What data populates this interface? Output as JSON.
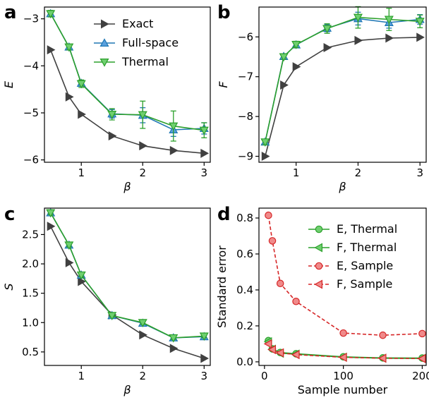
{
  "colors": {
    "exact": "#404040",
    "fullspace": "#1f77b4",
    "thermal": "#2ca02c",
    "sample": "#d62728",
    "thermal_marker_fill": "#6fcf6f",
    "sample_marker_fill": "#f08a8a",
    "full_marker_fill": "#5aa0dd"
  },
  "chart_data": [
    {
      "id": "a",
      "type": "line",
      "panel_label": "a",
      "xlabel": "β",
      "ylabel": "E",
      "xlim": [
        0.4,
        3.1
      ],
      "ylim": [
        -6.05,
        -2.75
      ],
      "xticks": [
        1,
        2,
        3
      ],
      "xtick_labels": [
        "1",
        "2",
        "3"
      ],
      "yticks": [
        -6,
        -5,
        -4,
        -3
      ],
      "ytick_labels": [
        "−6",
        "−5",
        "−4",
        "−3"
      ],
      "legend": "top-right",
      "series": [
        {
          "name": "Exact",
          "marker": "tri-right",
          "color_key": "exact",
          "x": [
            0.5,
            0.8,
            1.0,
            1.5,
            2.0,
            2.5,
            3.0
          ],
          "y": [
            -3.66,
            -4.66,
            -5.03,
            -5.49,
            -5.7,
            -5.8,
            -5.86
          ]
        },
        {
          "name": "Full-space",
          "marker": "tri-up",
          "color_key": "fullspace",
          "x": [
            0.5,
            0.8,
            1.0,
            1.5,
            2.0,
            2.5,
            3.0
          ],
          "y": [
            -2.89,
            -3.6,
            -4.37,
            -5.02,
            -5.05,
            -5.36,
            -5.33
          ],
          "err": [
            0.05,
            0.05,
            0.06,
            0.09,
            0.16,
            0.14,
            0.12
          ]
        },
        {
          "name": "Thermal",
          "marker": "tri-down",
          "color_key": "thermal",
          "x": [
            0.5,
            0.8,
            1.0,
            1.5,
            2.0,
            2.5,
            3.0
          ],
          "y": [
            -2.89,
            -3.6,
            -4.38,
            -5.03,
            -5.04,
            -5.28,
            -5.37
          ],
          "err": [
            0.07,
            0.06,
            0.08,
            0.12,
            0.29,
            0.32,
            0.16
          ]
        }
      ]
    },
    {
      "id": "b",
      "type": "line",
      "panel_label": "b",
      "xlabel": "β",
      "ylabel": "F",
      "xlim": [
        0.4,
        3.1
      ],
      "ylim": [
        -9.15,
        -5.25
      ],
      "xticks": [
        1,
        2,
        3
      ],
      "xtick_labels": [
        "1",
        "2",
        "3"
      ],
      "yticks": [
        -9,
        -8,
        -7,
        -6
      ],
      "ytick_labels": [
        "−9",
        "−8",
        "−7",
        "−6"
      ],
      "series": [
        {
          "name": "Exact",
          "marker": "tri-right",
          "color_key": "exact",
          "x": [
            0.5,
            0.8,
            1.0,
            1.5,
            2.0,
            2.5,
            3.0
          ],
          "y": [
            -9.0,
            -7.21,
            -6.75,
            -6.27,
            -6.09,
            -6.03,
            -6.01
          ]
        },
        {
          "name": "Full-space",
          "marker": "tri-up",
          "color_key": "fullspace",
          "x": [
            0.5,
            0.8,
            1.0,
            1.5,
            2.0,
            2.5,
            3.0
          ],
          "y": [
            -8.64,
            -6.49,
            -6.2,
            -5.78,
            -5.54,
            -5.64,
            -5.56
          ],
          "err": [
            0.05,
            0.05,
            0.06,
            0.09,
            0.16,
            0.14,
            0.12
          ]
        },
        {
          "name": "Thermal",
          "marker": "tri-down",
          "color_key": "thermal",
          "x": [
            0.5,
            0.8,
            1.0,
            1.5,
            2.0,
            2.5,
            3.0
          ],
          "y": [
            -8.64,
            -6.5,
            -6.19,
            -5.79,
            -5.51,
            -5.56,
            -5.61
          ],
          "err": [
            0.07,
            0.06,
            0.08,
            0.12,
            0.27,
            0.28,
            0.16
          ]
        }
      ]
    },
    {
      "id": "c",
      "type": "line",
      "panel_label": "c",
      "xlabel": "β",
      "ylabel": "S",
      "xlim": [
        0.4,
        3.1
      ],
      "ylim": [
        0.27,
        2.95
      ],
      "xticks": [
        1,
        2,
        3
      ],
      "xtick_labels": [
        "1",
        "2",
        "3"
      ],
      "yticks": [
        0.5,
        1.0,
        1.5,
        2.0,
        2.5
      ],
      "ytick_labels": [
        "0.5",
        "1.0",
        "1.5",
        "2.0",
        "2.5"
      ],
      "series": [
        {
          "name": "Exact",
          "marker": "tri-right",
          "color_key": "exact",
          "x": [
            0.5,
            0.8,
            1.0,
            1.5,
            2.0,
            2.5,
            3.0
          ],
          "y": [
            2.64,
            2.02,
            1.7,
            1.13,
            0.79,
            0.56,
            0.39
          ]
        },
        {
          "name": "Full-space",
          "marker": "tri-up",
          "color_key": "fullspace",
          "x": [
            0.5,
            0.8,
            1.0,
            1.5,
            2.0,
            2.5,
            3.0
          ],
          "y": [
            2.87,
            2.32,
            1.81,
            1.12,
            0.99,
            0.74,
            0.76
          ],
          "err": [
            0.02,
            0.02,
            0.02,
            0.02,
            0.02,
            0.02,
            0.02
          ]
        },
        {
          "name": "Thermal",
          "marker": "tri-down",
          "color_key": "thermal",
          "x": [
            0.5,
            0.8,
            1.0,
            1.5,
            2.0,
            2.5,
            3.0
          ],
          "y": [
            2.87,
            2.32,
            1.81,
            1.12,
            1.0,
            0.74,
            0.77
          ],
          "err": [
            0.03,
            0.03,
            0.03,
            0.03,
            0.03,
            0.03,
            0.03
          ]
        }
      ]
    },
    {
      "id": "d",
      "type": "line",
      "panel_label": "d",
      "xlabel": "Sample number",
      "ylabel": "Standard error",
      "xlim": [
        -7,
        205
      ],
      "ylim": [
        -0.02,
        0.855
      ],
      "xticks": [
        0,
        100,
        200
      ],
      "xtick_labels": [
        "0",
        "100",
        "200"
      ],
      "yticks": [
        0.0,
        0.2,
        0.4,
        0.6,
        0.8
      ],
      "ytick_labels": [
        "0.0",
        "0.2",
        "0.4",
        "0.6",
        "0.8"
      ],
      "legend": "top-right",
      "series": [
        {
          "name": "E, Thermal",
          "marker": "circle",
          "line": "solid",
          "color_key": "thermal",
          "x": [
            5,
            10,
            20,
            40,
            100,
            150,
            200
          ],
          "y": [
            0.118,
            0.072,
            0.052,
            0.045,
            0.028,
            0.022,
            0.021
          ]
        },
        {
          "name": "F, Thermal",
          "marker": "tri-left",
          "line": "solid",
          "color_key": "thermal",
          "x": [
            5,
            10,
            20,
            40,
            100,
            150,
            200
          ],
          "y": [
            0.112,
            0.07,
            0.048,
            0.043,
            0.026,
            0.02,
            0.019
          ]
        },
        {
          "name": "E, Sample",
          "marker": "circle",
          "line": "dashed",
          "color_key": "sample",
          "x": [
            5,
            10,
            20,
            40,
            100,
            150,
            200
          ],
          "y": [
            0.815,
            0.673,
            0.436,
            0.336,
            0.16,
            0.148,
            0.157
          ]
        },
        {
          "name": "F, Sample",
          "marker": "tri-left",
          "line": "dashed",
          "color_key": "sample",
          "x": [
            5,
            10,
            20,
            40,
            100,
            150,
            200
          ],
          "y": [
            0.1,
            0.068,
            0.05,
            0.04,
            0.025,
            0.02,
            0.018
          ]
        }
      ]
    }
  ]
}
